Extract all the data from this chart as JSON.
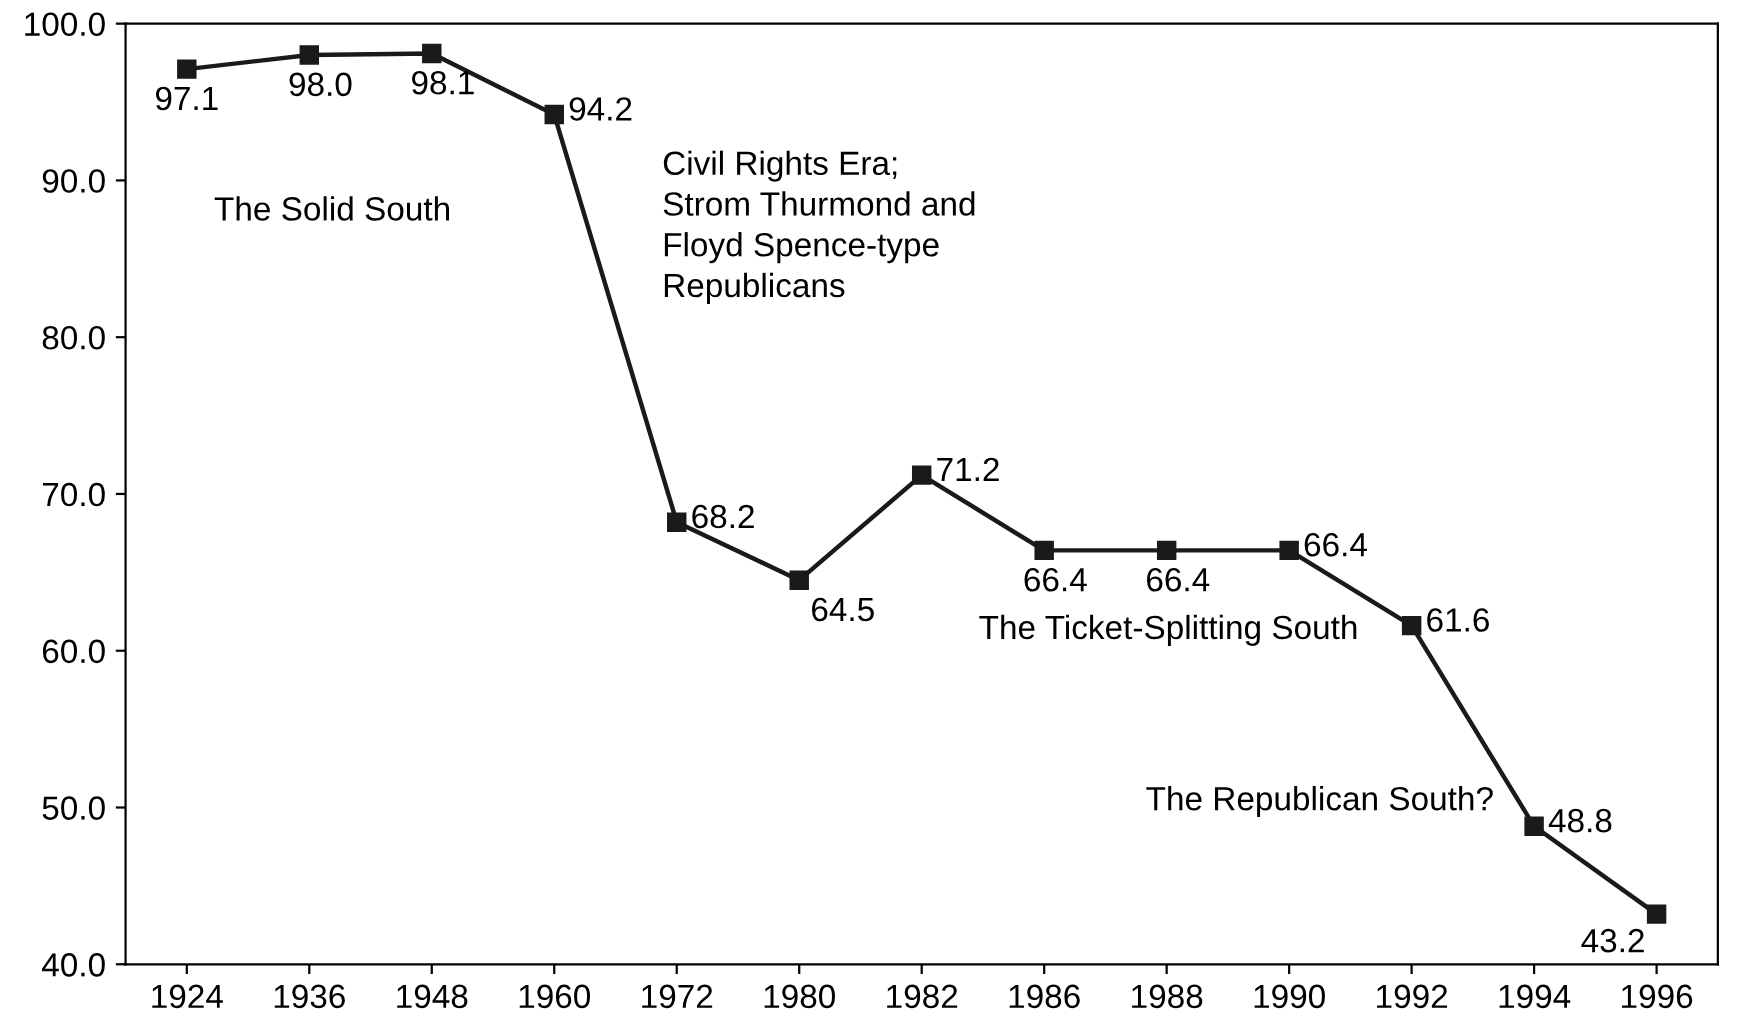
{
  "chart_data": {
    "type": "line",
    "categories": [
      "1924",
      "1936",
      "1948",
      "1960",
      "1972",
      "1980",
      "1982",
      "1986",
      "1988",
      "1990",
      "1992",
      "1994",
      "1996"
    ],
    "series": [
      {
        "color": "#1a1a1a",
        "values": [
          97.1,
          98.0,
          98.1,
          94.2,
          68.2,
          64.5,
          71.2,
          66.4,
          66.4,
          66.4,
          61.6,
          48.8,
          43.2
        ]
      }
    ],
    "ylim": [
      40,
      100
    ],
    "yticks": [
      {
        "value": 40,
        "label": "40.0"
      },
      {
        "value": 50,
        "label": "50.0"
      },
      {
        "value": 60,
        "label": "60.0"
      },
      {
        "value": 70,
        "label": "70.0"
      },
      {
        "value": 80,
        "label": "80.0"
      },
      {
        "value": 90,
        "label": "90.0"
      },
      {
        "value": 100,
        "label": "100.0"
      }
    ],
    "value_labels": [
      "97.1",
      "98.0",
      "98.1",
      "94.2",
      "68.2",
      "64.5",
      "71.2",
      "66.4",
      "66.4",
      "66.4",
      "61.6",
      "48.8",
      "43.2"
    ],
    "marker": "square",
    "line_style": "solid",
    "grid": false,
    "legend": false,
    "annotations": [
      "The Solid South",
      "Civil Rights Era;\nStrom Thurmond and\nFloyd Spence-type\nRepublicans",
      "The Ticket-Splitting South",
      "The Republican South?"
    ]
  }
}
